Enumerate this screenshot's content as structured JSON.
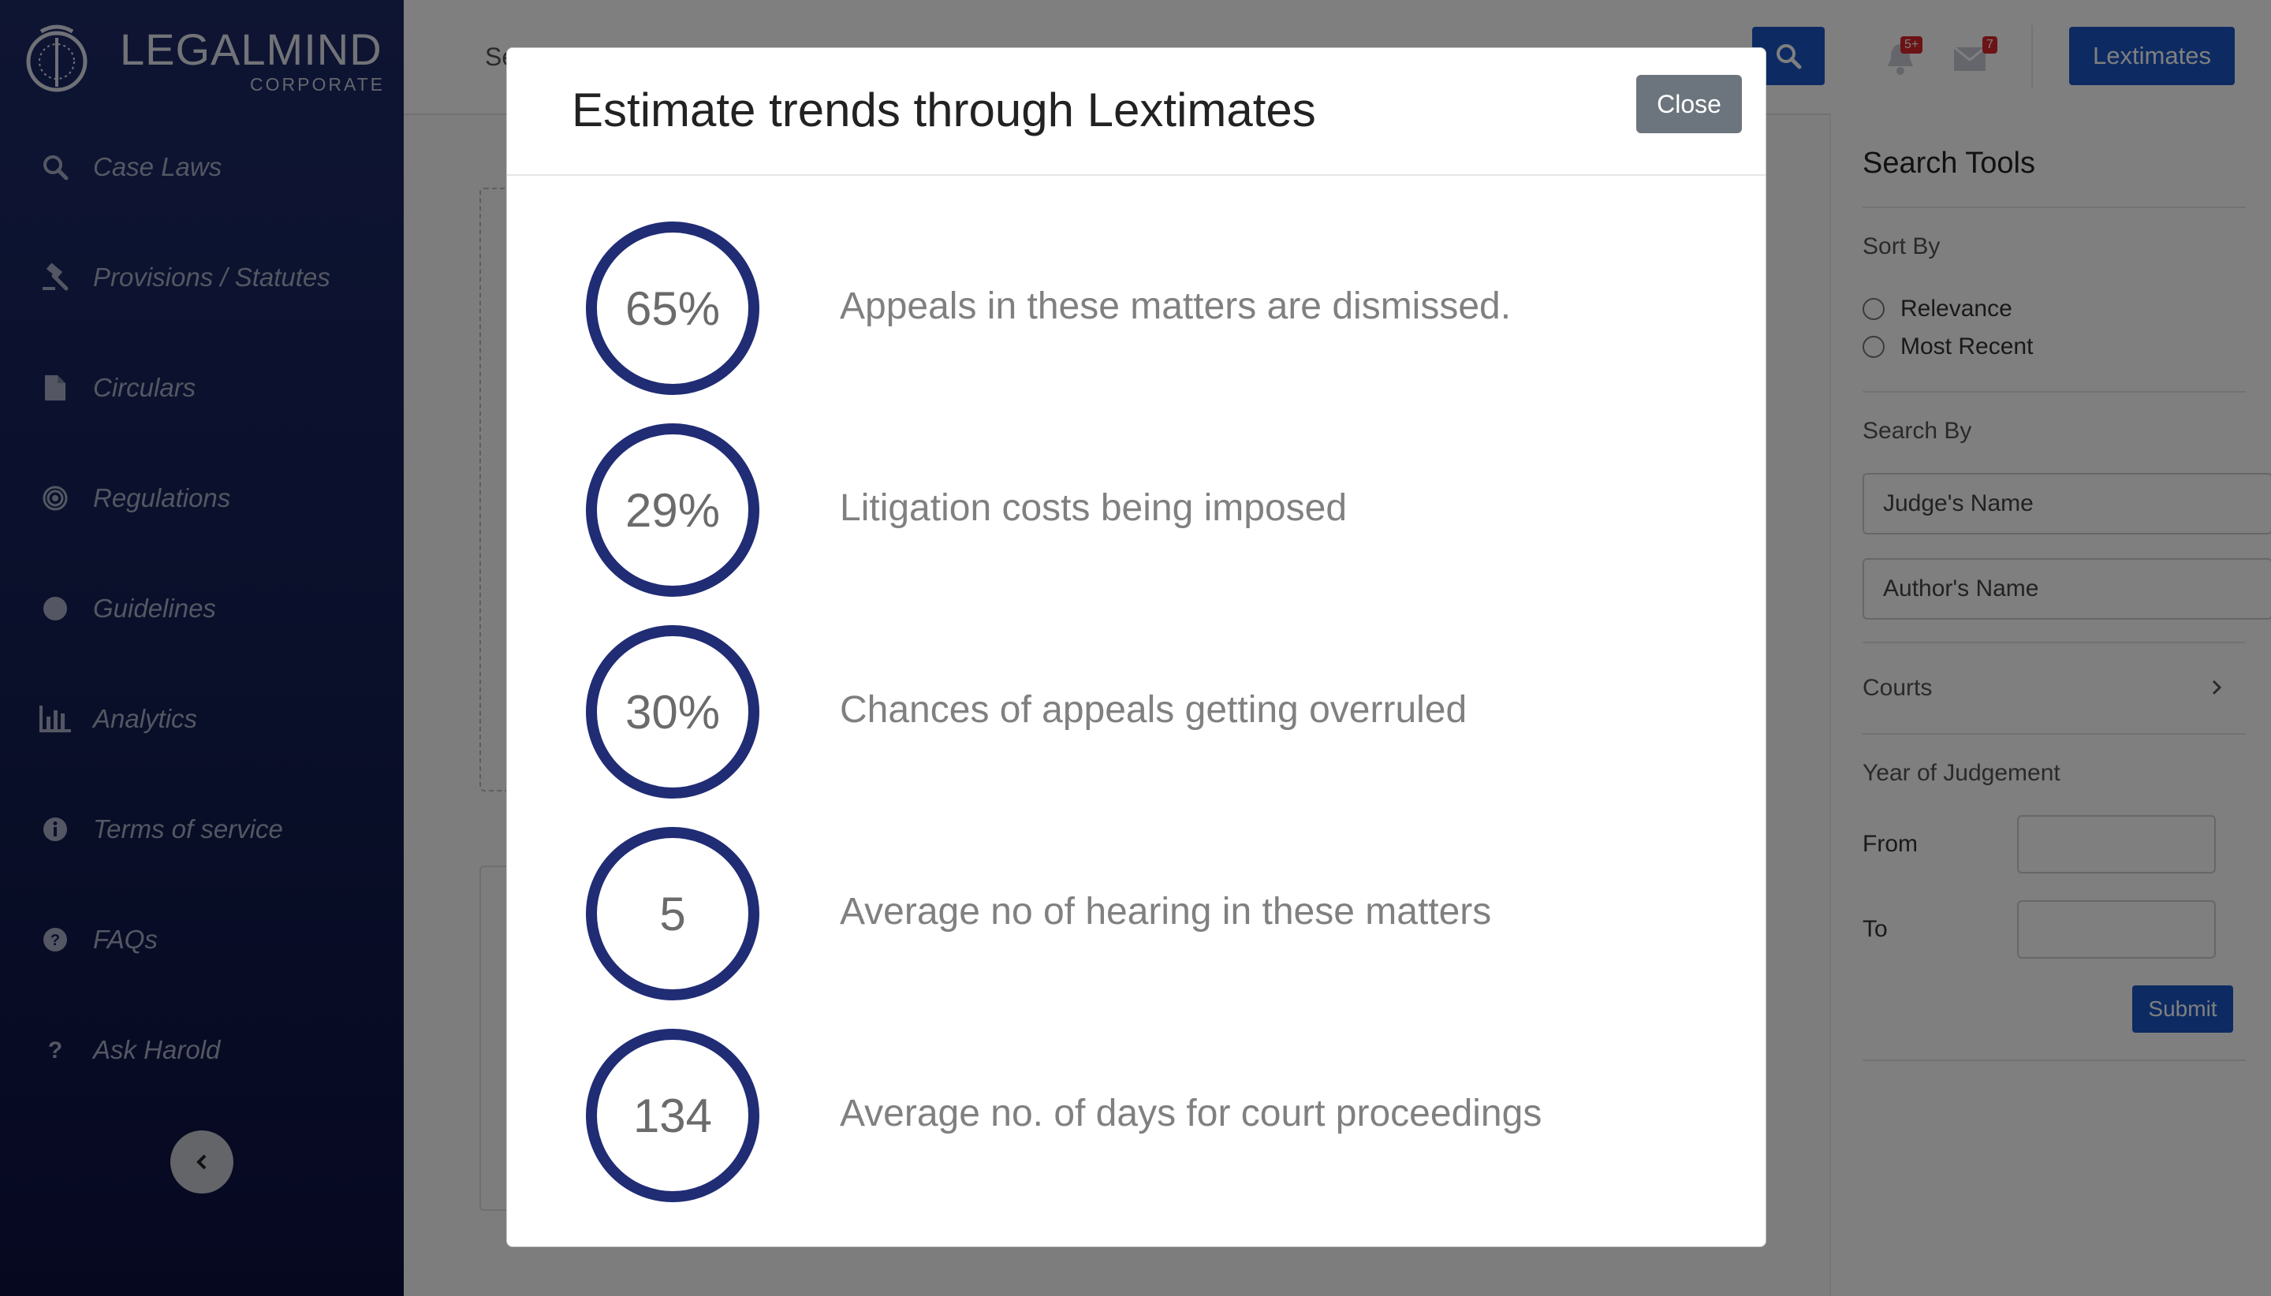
{
  "brand": {
    "name": "LEGALMIND",
    "subtitle": "CORPORATE"
  },
  "sidebar": {
    "items": [
      {
        "label": "Case Laws",
        "icon": "search-icon"
      },
      {
        "label": "Provisions / Statutes",
        "icon": "gavel-icon"
      },
      {
        "label": "Circulars",
        "icon": "document-icon"
      },
      {
        "label": "Regulations",
        "icon": "bullseye-icon"
      },
      {
        "label": "Guidelines",
        "icon": "circle-icon"
      },
      {
        "label": "Analytics",
        "icon": "bar-chart-icon"
      },
      {
        "label": "Terms of service",
        "icon": "info-icon"
      },
      {
        "label": "FAQs",
        "icon": "question-circle-icon"
      },
      {
        "label": "Ask Harold",
        "icon": "question-mark-icon"
      }
    ],
    "collapse_icon": "chevron-left-icon"
  },
  "topbar": {
    "search_text_partial": "Se",
    "notifications_badge": "5+",
    "messages_badge": "7",
    "lextimates_label": "Lextimates"
  },
  "search_tools": {
    "title": "Search Tools",
    "sort_by_label": "Sort By",
    "sort_options": [
      "Relevance",
      "Most Recent"
    ],
    "search_by_label": "Search By",
    "judge_placeholder": "Judge's Name",
    "author_placeholder": "Author's Name",
    "courts_label": "Courts",
    "year_label": "Year of Judgement",
    "from_label": "From",
    "to_label": "To",
    "submit_label": "Submit"
  },
  "modal": {
    "title": "Estimate trends through Lextimates",
    "close_label": "Close",
    "stats": [
      {
        "value": "65%",
        "text": "Appeals in these matters are dismissed."
      },
      {
        "value": "29%",
        "text": "Litigation costs being imposed"
      },
      {
        "value": "30%",
        "text": "Chances of appeals getting overruled"
      },
      {
        "value": "5",
        "text": "Average no of hearing in these matters"
      },
      {
        "value": "134",
        "text": "Average no. of days for court proceedings"
      }
    ]
  },
  "colors": {
    "sidebar": "#152055",
    "primary": "#1b57c4",
    "ring": "#202c74",
    "close_button": "#6c757d"
  }
}
